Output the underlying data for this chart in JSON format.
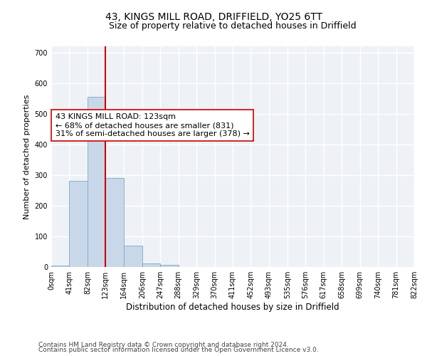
{
  "title1": "43, KINGS MILL ROAD, DRIFFIELD, YO25 6TT",
  "title2": "Size of property relative to detached houses in Driffield",
  "xlabel": "Distribution of detached houses by size in Driffield",
  "ylabel": "Number of detached properties",
  "bin_edges": [
    0,
    41,
    82,
    123,
    164,
    206,
    247,
    288,
    329,
    370,
    411,
    452,
    493,
    535,
    576,
    617,
    658,
    699,
    740,
    781,
    822
  ],
  "bin_counts": [
    5,
    280,
    555,
    290,
    70,
    12,
    7,
    0,
    0,
    0,
    0,
    0,
    0,
    0,
    0,
    0,
    0,
    0,
    0,
    0
  ],
  "bar_color": "#c8d8e8",
  "bar_edge_color": "#7aa8c8",
  "vline_x": 123,
  "vline_color": "#cc0000",
  "annotation_text": "43 KINGS MILL ROAD: 123sqm\n← 68% of detached houses are smaller (831)\n31% of semi-detached houses are larger (378) →",
  "annotation_box_color": "white",
  "annotation_box_edge_color": "#cc0000",
  "ylim": [
    0,
    720
  ],
  "yticks": [
    0,
    100,
    200,
    300,
    400,
    500,
    600,
    700
  ],
  "background_color": "#eef2f6",
  "grid_color": "white",
  "footer1": "Contains HM Land Registry data © Crown copyright and database right 2024.",
  "footer2": "Contains public sector information licensed under the Open Government Licence v3.0.",
  "title1_fontsize": 10,
  "title2_fontsize": 9,
  "xlabel_fontsize": 8.5,
  "ylabel_fontsize": 8,
  "tick_fontsize": 7,
  "footer_fontsize": 6.5,
  "annotation_fontsize": 8
}
